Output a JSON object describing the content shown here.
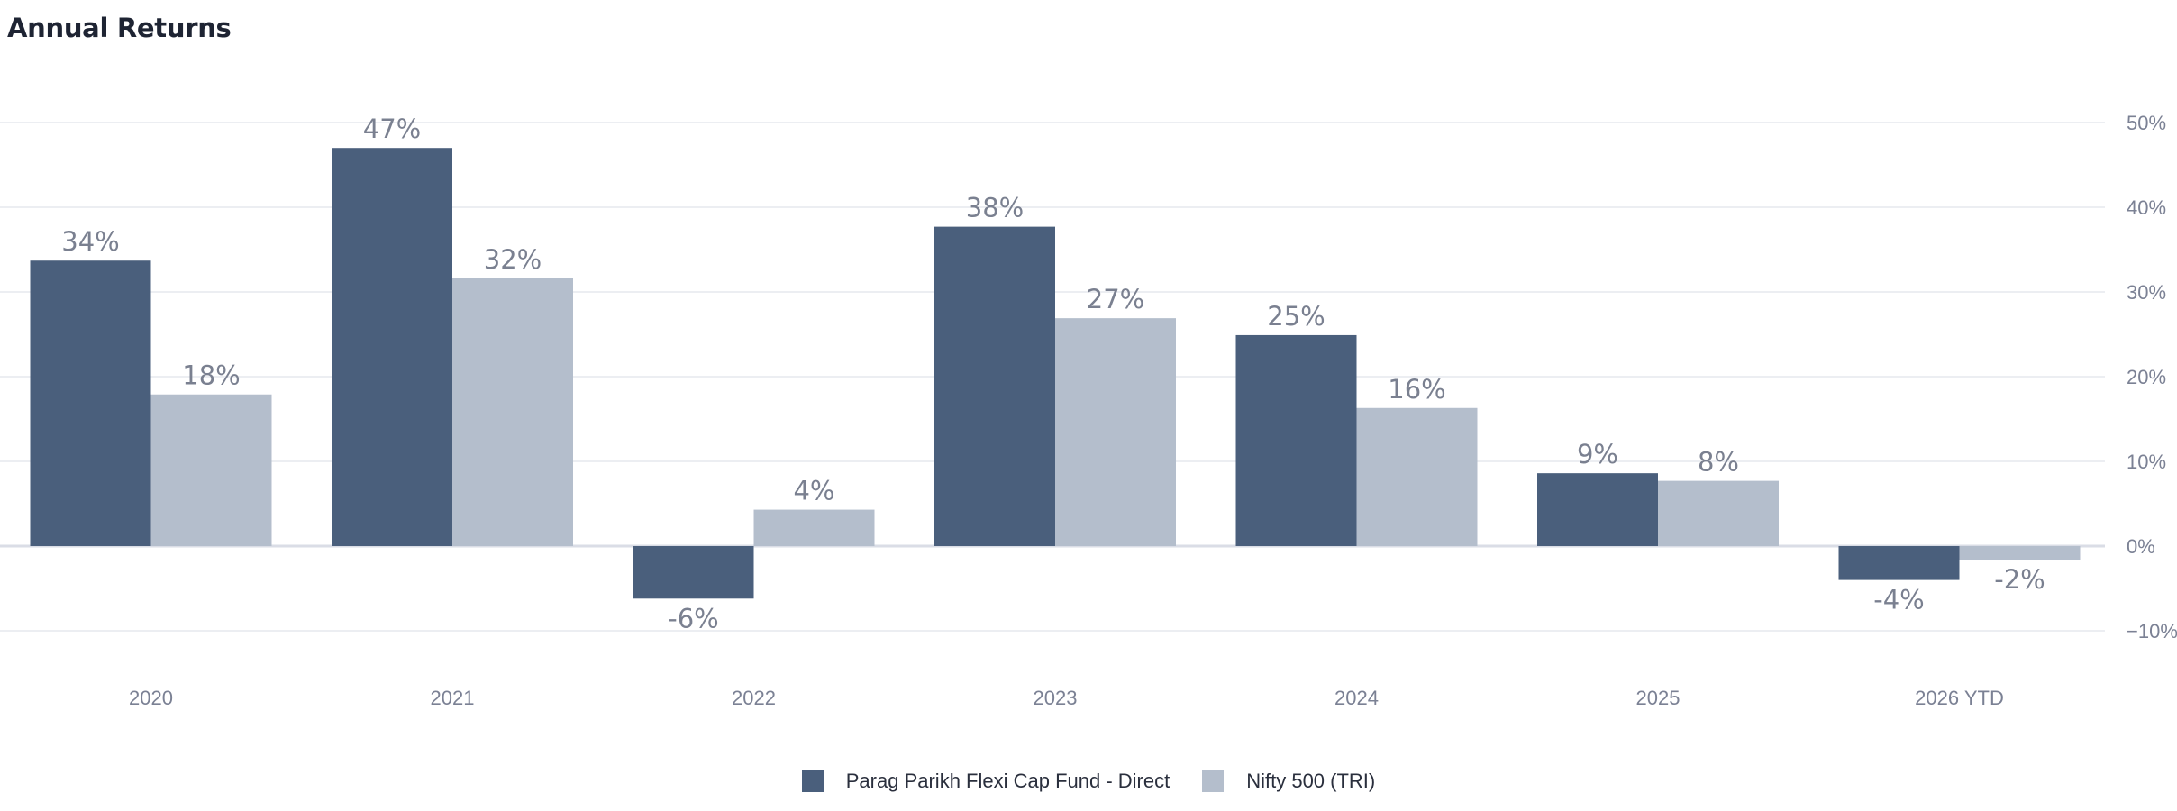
{
  "chart_data": {
    "type": "bar",
    "title": "Annual Returns",
    "categories": [
      "2020",
      "2021",
      "2022",
      "2023",
      "2024",
      "2025",
      "2026 YTD"
    ],
    "series": [
      {
        "name": "Parag Parikh Flexi Cap Fund - Direct",
        "color": "#4a5f7c",
        "values": [
          33.7,
          47.0,
          -6.2,
          37.7,
          24.9,
          8.6,
          -4.0
        ],
        "labels": [
          "34%",
          "47%",
          "-6%",
          "38%",
          "25%",
          "9%",
          "-4%"
        ]
      },
      {
        "name": "Nifty 500 (TRI)",
        "color": "#b4becc",
        "values": [
          17.9,
          31.6,
          4.3,
          26.9,
          16.3,
          7.7,
          -1.6
        ],
        "labels": [
          "18%",
          "32%",
          "4%",
          "27%",
          "16%",
          "8%",
          "-2%"
        ]
      }
    ],
    "yticks": [
      50,
      40,
      30,
      20,
      10,
      0,
      -10
    ],
    "ytick_labels": [
      "50%",
      "40%",
      "30%",
      "20%",
      "10%",
      "0%",
      "−10%"
    ],
    "ylim": [
      -10,
      50
    ],
    "yaxis_position": "right",
    "grid": true,
    "legend_position": "bottom-center"
  }
}
